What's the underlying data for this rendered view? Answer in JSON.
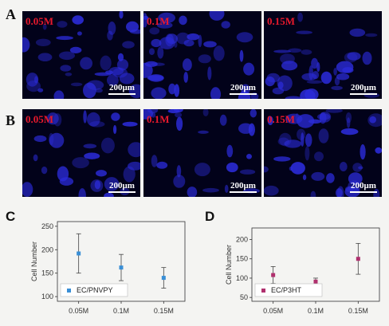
{
  "panels": {
    "a": "A",
    "b": "B",
    "c": "C",
    "d": "D"
  },
  "row_a": [
    {
      "concentration": "0.05M",
      "scale": "200μm"
    },
    {
      "concentration": "0.1M",
      "scale": "200μm"
    },
    {
      "concentration": "0.15M",
      "scale": "200μm"
    }
  ],
  "row_b": [
    {
      "concentration": "0.05M",
      "scale": "200μm"
    },
    {
      "concentration": "0.1M",
      "scale": "200μm"
    },
    {
      "concentration": "0.15M",
      "scale": "200μm"
    }
  ],
  "colors": {
    "cells": "#2b2bd8",
    "micro_bg": "#02021a",
    "label_red": "#e8192c",
    "series_c": "#3a8fd6",
    "series_d": "#b0306e"
  },
  "chart_data": [
    {
      "type": "scatter",
      "panel": "C",
      "categories": [
        "0.05M",
        "0.1M",
        "0.15M"
      ],
      "series": [
        {
          "name": "EC/PNVPY",
          "values": [
            192,
            162,
            140
          ],
          "errors": [
            42,
            28,
            22
          ]
        }
      ],
      "ylabel": "Cell Number",
      "xlabel": "",
      "ylim": [
        90,
        260
      ],
      "yticks": [
        100,
        150,
        200,
        250
      ],
      "legend": "bottom-left",
      "grid": false
    },
    {
      "type": "scatter",
      "panel": "D",
      "categories": [
        "0.05M",
        "0.1M",
        "0.15M"
      ],
      "series": [
        {
          "name": "EC/P3HT",
          "values": [
            108,
            91,
            150
          ],
          "errors": [
            22,
            9,
            40
          ]
        }
      ],
      "ylabel": "Cell Number",
      "xlabel": "",
      "ylim": [
        40,
        230
      ],
      "yticks": [
        50,
        100,
        150,
        200
      ],
      "legend": "bottom-left",
      "grid": false
    }
  ]
}
